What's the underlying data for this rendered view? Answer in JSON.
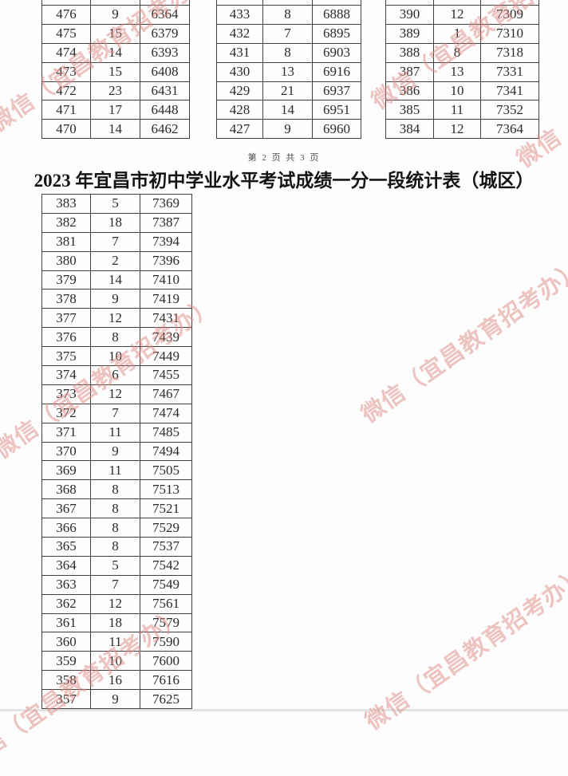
{
  "page": {
    "page_indicator": "第 2 页 共 3 页",
    "title": "2023 年宜昌市初中学业水平考试成绩一分一段统计表（城区）",
    "watermark_text": "微信（宜昌教育招考办）",
    "watermark_color": "#de8a84",
    "text_color": "#2b2b2b",
    "border_color": "#3f3f3f"
  },
  "top_tables": [
    {
      "rows": [
        [
          "476",
          "9",
          "6364"
        ],
        [
          "475",
          "15",
          "6379"
        ],
        [
          "474",
          "14",
          "6393"
        ],
        [
          "473",
          "15",
          "6408"
        ],
        [
          "472",
          "23",
          "6431"
        ],
        [
          "471",
          "17",
          "6448"
        ],
        [
          "470",
          "14",
          "6462"
        ]
      ]
    },
    {
      "rows": [
        [
          "433",
          "8",
          "6888"
        ],
        [
          "432",
          "7",
          "6895"
        ],
        [
          "431",
          "8",
          "6903"
        ],
        [
          "430",
          "13",
          "6916"
        ],
        [
          "429",
          "21",
          "6937"
        ],
        [
          "428",
          "14",
          "6951"
        ],
        [
          "427",
          "9",
          "6960"
        ]
      ]
    },
    {
      "rows": [
        [
          "390",
          "12",
          "7309"
        ],
        [
          "389",
          "1",
          "7310"
        ],
        [
          "388",
          "8",
          "7318"
        ],
        [
          "387",
          "13",
          "7331"
        ],
        [
          "386",
          "10",
          "7341"
        ],
        [
          "385",
          "11",
          "7352"
        ],
        [
          "384",
          "12",
          "7364"
        ]
      ]
    }
  ],
  "bottom_table": {
    "rows": [
      [
        "383",
        "5",
        "7369"
      ],
      [
        "382",
        "18",
        "7387"
      ],
      [
        "381",
        "7",
        "7394"
      ],
      [
        "380",
        "2",
        "7396"
      ],
      [
        "379",
        "14",
        "7410"
      ],
      [
        "378",
        "9",
        "7419"
      ],
      [
        "377",
        "12",
        "7431"
      ],
      [
        "376",
        "8",
        "7439"
      ],
      [
        "375",
        "10",
        "7449"
      ],
      [
        "374",
        "6",
        "7455"
      ],
      [
        "373",
        "12",
        "7467"
      ],
      [
        "372",
        "7",
        "7474"
      ],
      [
        "371",
        "11",
        "7485"
      ],
      [
        "370",
        "9",
        "7494"
      ],
      [
        "369",
        "11",
        "7505"
      ],
      [
        "368",
        "8",
        "7513"
      ],
      [
        "367",
        "8",
        "7521"
      ],
      [
        "366",
        "8",
        "7529"
      ],
      [
        "365",
        "8",
        "7537"
      ],
      [
        "364",
        "5",
        "7542"
      ],
      [
        "363",
        "7",
        "7549"
      ],
      [
        "362",
        "12",
        "7561"
      ],
      [
        "361",
        "18",
        "7579"
      ],
      [
        "360",
        "11",
        "7590"
      ],
      [
        "359",
        "10",
        "7600"
      ],
      [
        "358",
        "16",
        "7616"
      ],
      [
        "357",
        "9",
        "7625"
      ]
    ]
  }
}
